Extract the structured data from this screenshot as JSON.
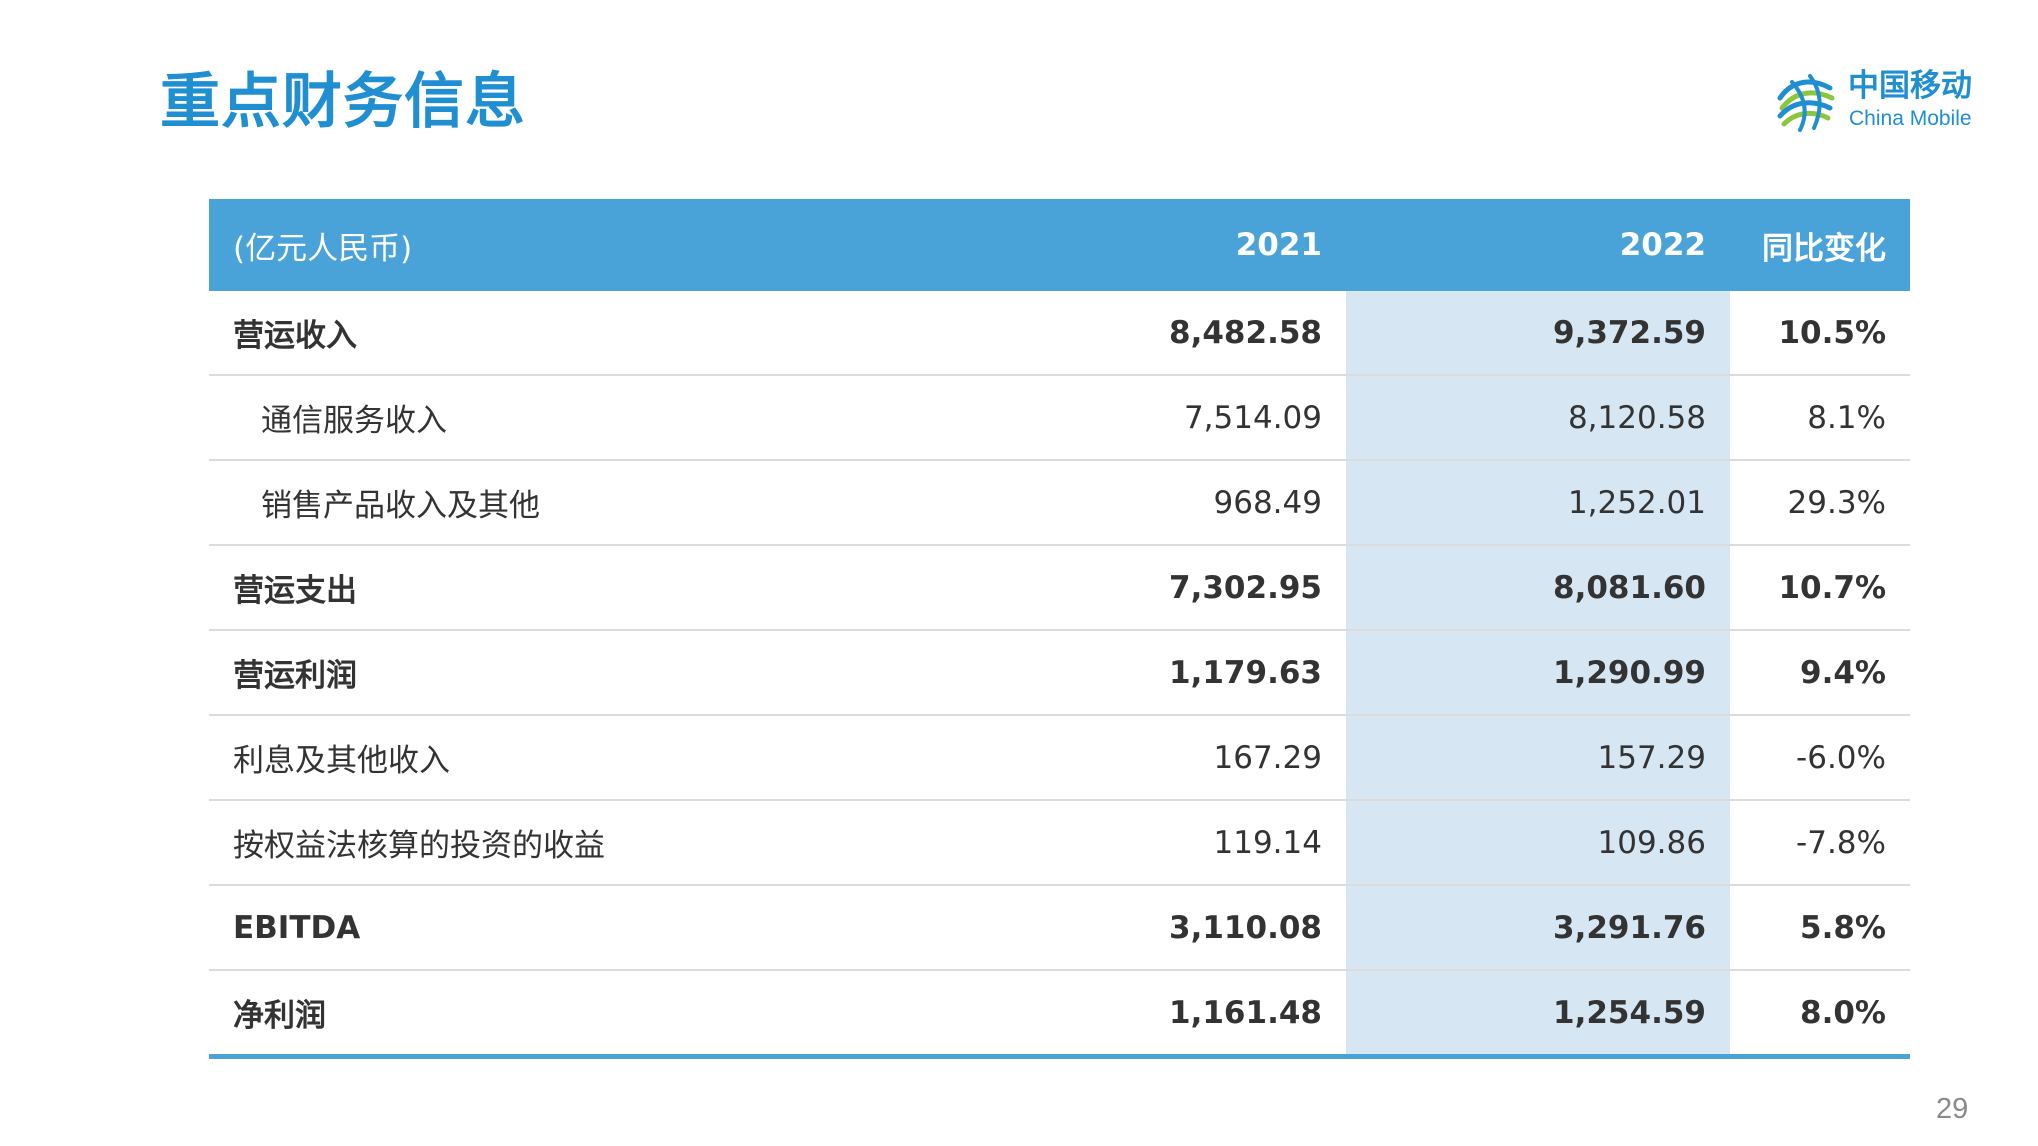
{
  "slide": {
    "title": "重点财务信息",
    "page_number": "29"
  },
  "logo": {
    "text_cn": "中国移动",
    "text_en": "China Mobile",
    "icon": "china-mobile-logo-icon"
  },
  "colors": {
    "title": "#1f8fd1",
    "header_bg": "#4aa3d8",
    "highlight_column": "#d6e7f3",
    "row_divider": "#dcdcdc"
  },
  "table": {
    "headers": [
      "(亿元人民币)",
      "2021",
      "2022",
      "同比变化"
    ],
    "rows": [
      {
        "label": "营运收入",
        "v2021": "8,482.58",
        "v2022": "9,372.59",
        "change": "10.5%"
      },
      {
        "label": "通信服务收入",
        "v2021": "7,514.09",
        "v2022": "8,120.58",
        "change": "8.1%"
      },
      {
        "label": "销售产品收入及其他",
        "v2021": "968.49",
        "v2022": "1,252.01",
        "change": "29.3%"
      },
      {
        "label": "营运支出",
        "v2021": "7,302.95",
        "v2022": "8,081.60",
        "change": "10.7%"
      },
      {
        "label": "营运利润",
        "v2021": "1,179.63",
        "v2022": "1,290.99",
        "change": "9.4%"
      },
      {
        "label": "利息及其他收入",
        "v2021": "167.29",
        "v2022": "157.29",
        "change": "-6.0%"
      },
      {
        "label": "按权益法核算的投资的收益",
        "v2021": "119.14",
        "v2022": "109.86",
        "change": "-7.8%"
      },
      {
        "label": "EBITDA",
        "v2021": "3,110.08",
        "v2022": "3,291.76",
        "change": "5.8%"
      },
      {
        "label": "净利润",
        "v2021": "1,161.48",
        "v2022": "1,254.59",
        "change": "8.0%"
      }
    ]
  }
}
